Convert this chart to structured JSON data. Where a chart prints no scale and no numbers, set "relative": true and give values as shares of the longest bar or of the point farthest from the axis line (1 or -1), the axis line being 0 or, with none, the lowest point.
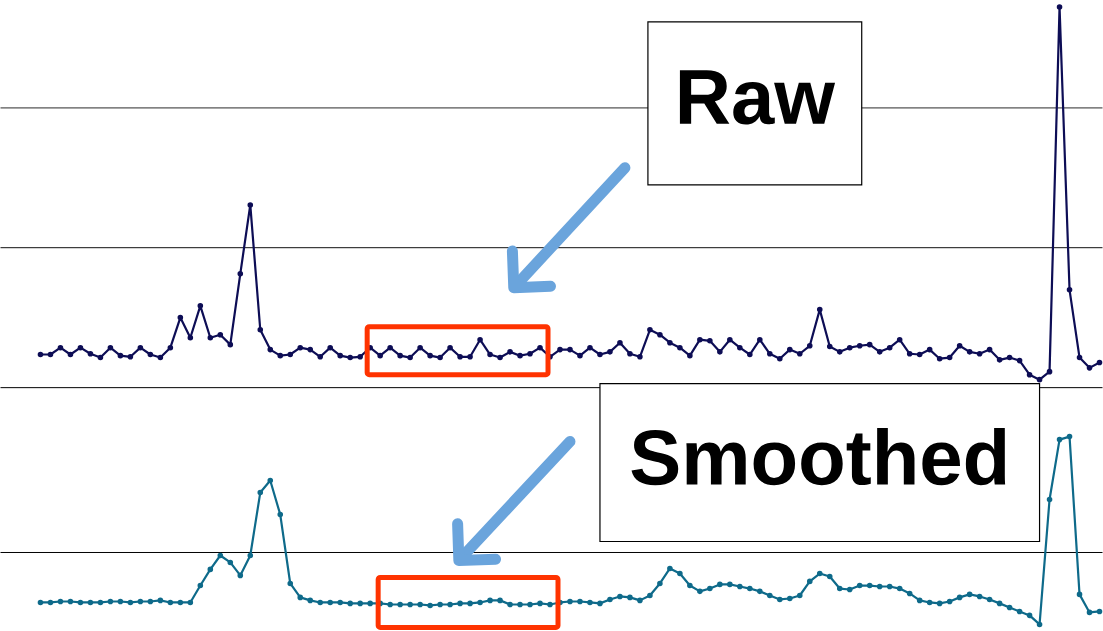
{
  "chart_data": [
    {
      "type": "line",
      "relative": true,
      "marker": "circle",
      "color": "#0d0d55",
      "ref_lines": [
        {
          "axis": "y",
          "value": 0,
          "color": "#000000"
        },
        {
          "axis": "y",
          "value": 0.3675,
          "color": "#000000"
        },
        {
          "axis": "y",
          "value": 0.735,
          "color": "#000000"
        }
      ],
      "annotations": [
        "Raw"
      ],
      "categories": [
        null,
        null,
        null,
        null,
        null,
        null,
        null,
        null,
        null,
        null,
        null,
        null,
        null,
        null,
        null,
        null,
        null,
        null,
        null,
        null,
        null,
        null,
        null,
        null,
        null,
        null,
        null,
        null,
        null,
        null,
        null,
        null,
        null,
        null,
        null,
        null,
        null,
        null,
        null,
        null,
        null,
        null,
        null,
        null,
        null,
        null,
        null,
        null,
        null,
        null,
        null,
        null,
        null,
        null,
        null,
        null,
        null,
        null,
        null,
        null,
        null,
        null,
        null,
        null,
        null,
        null,
        null,
        null,
        null,
        null,
        null,
        null,
        null,
        null,
        null,
        null,
        null,
        null,
        null,
        null,
        null,
        null,
        null,
        null,
        null,
        null,
        null,
        null,
        null,
        null,
        null,
        null,
        null,
        null,
        null,
        null,
        null,
        null,
        null,
        null,
        null,
        null,
        null,
        null,
        null,
        null,
        null
      ],
      "values": [
        0.087,
        0.087,
        0.105,
        0.087,
        0.105,
        0.089,
        0.079,
        0.105,
        0.084,
        0.081,
        0.105,
        0.087,
        0.079,
        0.105,
        0.184,
        0.131,
        0.215,
        0.131,
        0.139,
        0.113,
        0.299,
        0.48,
        0.152,
        0.1,
        0.084,
        0.087,
        0.105,
        0.1,
        0.081,
        0.105,
        0.084,
        0.079,
        0.081,
        0.105,
        0.084,
        0.105,
        0.084,
        0.079,
        0.105,
        0.084,
        0.079,
        0.105,
        0.081,
        0.081,
        0.126,
        0.087,
        0.079,
        0.094,
        0.084,
        0.089,
        0.105,
        0.081,
        0.1,
        0.1,
        0.084,
        0.105,
        0.087,
        0.094,
        0.118,
        0.089,
        0.081,
        0.152,
        0.139,
        0.118,
        0.105,
        0.084,
        0.126,
        0.123,
        0.094,
        0.126,
        0.105,
        0.087,
        0.126,
        0.089,
        0.076,
        0.1,
        0.089,
        0.11,
        0.205,
        0.108,
        0.094,
        0.105,
        0.11,
        0.113,
        0.094,
        0.105,
        0.126,
        0.089,
        0.087,
        0.1,
        0.076,
        0.079,
        0.11,
        0.094,
        0.089,
        0.1,
        0.073,
        0.079,
        0.071,
        0.034,
        0.021,
        0.042,
        1,
        0.257,
        0.079,
        0.052,
        0.066
      ]
    },
    {
      "type": "line",
      "relative": true,
      "marker": "circle",
      "color": "#0e6a8a",
      "ref_lines": [
        {
          "axis": "y",
          "value": 0.383,
          "color": "#000000"
        }
      ],
      "annotations": [
        "Smoothed"
      ],
      "categories": [
        null,
        null,
        null,
        null,
        null,
        null,
        null,
        null,
        null,
        null,
        null,
        null,
        null,
        null,
        null,
        null,
        null,
        null,
        null,
        null,
        null,
        null,
        null,
        null,
        null,
        null,
        null,
        null,
        null,
        null,
        null,
        null,
        null,
        null,
        null,
        null,
        null,
        null,
        null,
        null,
        null,
        null,
        null,
        null,
        null,
        null,
        null,
        null,
        null,
        null,
        null,
        null,
        null,
        null,
        null,
        null,
        null,
        null,
        null,
        null,
        null,
        null,
        null,
        null,
        null,
        null,
        null,
        null,
        null,
        null,
        null,
        null,
        null,
        null,
        null,
        null,
        null,
        null,
        null,
        null,
        null,
        null,
        null,
        null,
        null,
        null,
        null,
        null,
        null,
        null,
        null,
        null,
        null,
        null,
        null,
        null,
        null,
        null,
        null,
        null,
        null,
        null,
        null,
        null,
        null,
        null,
        null
      ],
      "values": [
        0.117,
        0.117,
        0.122,
        0.122,
        0.117,
        0.117,
        0.117,
        0.122,
        0.122,
        0.117,
        0.122,
        0.122,
        0.128,
        0.117,
        0.117,
        0.117,
        0.207,
        0.293,
        0.367,
        0.33,
        0.261,
        0.367,
        0.702,
        0.766,
        0.585,
        0.218,
        0.144,
        0.128,
        0.117,
        0.117,
        0.117,
        0.112,
        0.112,
        0.112,
        0.112,
        0.106,
        0.106,
        0.106,
        0.106,
        0.101,
        0.106,
        0.106,
        0.112,
        0.112,
        0.117,
        0.128,
        0.128,
        0.106,
        0.106,
        0.106,
        0.112,
        0.106,
        0.117,
        0.122,
        0.122,
        0.117,
        0.112,
        0.133,
        0.149,
        0.144,
        0.128,
        0.154,
        0.218,
        0.298,
        0.271,
        0.207,
        0.176,
        0.191,
        0.213,
        0.213,
        0.202,
        0.191,
        0.176,
        0.154,
        0.133,
        0.138,
        0.154,
        0.229,
        0.271,
        0.255,
        0.191,
        0.186,
        0.207,
        0.207,
        0.202,
        0.202,
        0.191,
        0.165,
        0.128,
        0.117,
        0.112,
        0.122,
        0.144,
        0.16,
        0.149,
        0.133,
        0.112,
        0.09,
        0.069,
        0.048,
        0,
        0.665,
        0.984,
        1,
        0.16,
        0.064,
        0.069
      ]
    }
  ]
}
